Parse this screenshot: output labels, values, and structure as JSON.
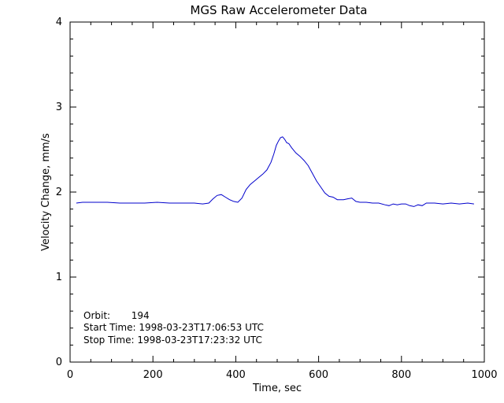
{
  "chart_data": {
    "type": "line",
    "title": "MGS Raw Accelerometer Data",
    "xlabel": "Time, sec",
    "ylabel": "Velocity Change, mm/s",
    "xlim": [
      0,
      1000
    ],
    "ylim": [
      0,
      4
    ],
    "x_ticks": [
      0,
      200,
      400,
      600,
      800,
      1000
    ],
    "x_tick_labels": [
      "0",
      "200",
      "400",
      "600",
      "800",
      "1000"
    ],
    "y_ticks": [
      0,
      1,
      2,
      3,
      4
    ],
    "y_tick_labels": [
      "0",
      "1",
      "2",
      "3",
      "4"
    ],
    "grid": false,
    "series_color": "#0000cc",
    "series": [
      {
        "x": [
          15,
          30,
          60,
          90,
          120,
          150,
          180,
          210,
          240,
          270,
          300,
          320,
          335,
          345,
          355,
          365,
          375,
          385,
          395,
          405,
          415,
          425,
          435,
          445,
          455,
          465,
          475,
          485,
          492,
          498,
          503,
          508,
          513,
          518,
          523,
          528,
          535,
          545,
          555,
          565,
          575,
          585,
          595,
          605,
          615,
          625,
          635,
          645,
          660,
          670,
          680,
          690,
          700,
          715,
          730,
          745,
          760,
          770,
          780,
          790,
          800,
          810,
          820,
          830,
          840,
          850,
          860,
          880,
          900,
          920,
          940,
          960,
          975
        ],
        "y": [
          1.87,
          1.88,
          1.88,
          1.88,
          1.87,
          1.87,
          1.87,
          1.88,
          1.87,
          1.87,
          1.87,
          1.86,
          1.87,
          1.92,
          1.96,
          1.97,
          1.94,
          1.91,
          1.89,
          1.88,
          1.93,
          2.03,
          2.09,
          2.13,
          2.17,
          2.21,
          2.26,
          2.35,
          2.45,
          2.55,
          2.6,
          2.64,
          2.65,
          2.62,
          2.58,
          2.57,
          2.52,
          2.46,
          2.42,
          2.37,
          2.31,
          2.22,
          2.13,
          2.06,
          1.99,
          1.95,
          1.94,
          1.91,
          1.91,
          1.92,
          1.93,
          1.89,
          1.88,
          1.88,
          1.87,
          1.87,
          1.85,
          1.84,
          1.86,
          1.85,
          1.86,
          1.86,
          1.84,
          1.83,
          1.85,
          1.84,
          1.87,
          1.87,
          1.86,
          1.87,
          1.86,
          1.87,
          1.86
        ]
      }
    ],
    "annotations": [
      "Orbit:       194",
      "Start Time: 1998-03-23T17:06:53 UTC",
      "Stop Time: 1998-03-23T17:23:32 UTC"
    ]
  }
}
